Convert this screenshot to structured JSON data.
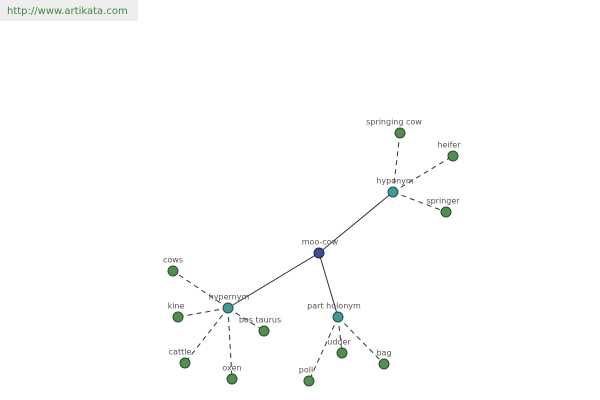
{
  "header": {
    "url": "http://www.artikata.com"
  },
  "nodes": [
    {
      "label": "moo-cow"
    },
    {
      "label": "hyponym"
    },
    {
      "label": "hypernym"
    },
    {
      "label": "part holonym"
    },
    {
      "label": "springing cow"
    },
    {
      "label": "heifer"
    },
    {
      "label": "springer"
    },
    {
      "label": "cows"
    },
    {
      "label": "kine"
    },
    {
      "label": "bos taurus"
    },
    {
      "label": "cattle"
    },
    {
      "label": "oxen"
    },
    {
      "label": "udder"
    },
    {
      "label": "bag"
    },
    {
      "label": "poll"
    }
  ]
}
